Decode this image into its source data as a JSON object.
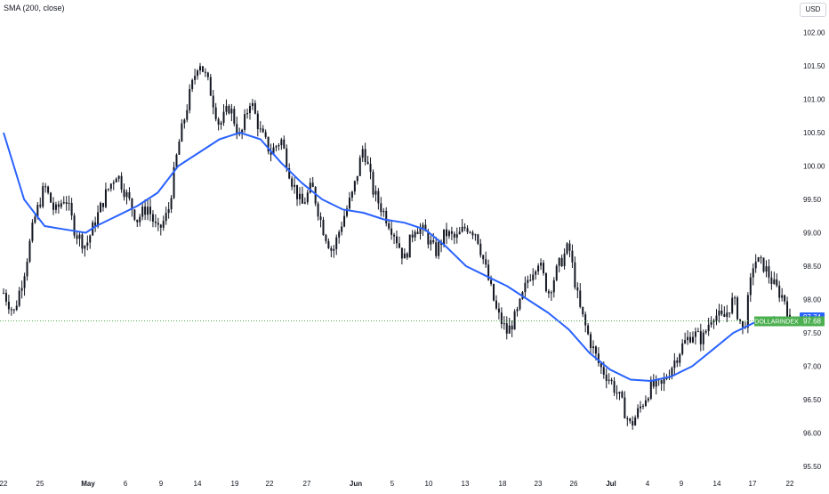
{
  "indicator_label": "SMA (200, close)",
  "currency": "USD",
  "price_tag": {
    "sma_value": "97.74",
    "instrument": "DOLLARINDEX",
    "last_value": "97.68"
  },
  "colors": {
    "candle": "#131722",
    "sma": "#2962ff",
    "price_line": "#4caf50",
    "badge_text": "#ffffff",
    "axis_text": "#131722",
    "background": "#ffffff"
  },
  "chart_data": {
    "type": "line",
    "instrument": "DOLLARINDEX",
    "title": "",
    "xlabel": "",
    "ylabel": "",
    "price_scale_side": "right",
    "grid": false,
    "ylim": [
      95.5,
      102.25
    ],
    "x_ticks": [
      {
        "label": "22",
        "bold": false
      },
      {
        "label": "25",
        "bold": false
      },
      {
        "label": "May",
        "bold": true
      },
      {
        "label": "6",
        "bold": false
      },
      {
        "label": "9",
        "bold": false
      },
      {
        "label": "14",
        "bold": false
      },
      {
        "label": "19",
        "bold": false
      },
      {
        "label": "22",
        "bold": false
      },
      {
        "label": "27",
        "bold": false
      },
      {
        "label": "Jun",
        "bold": true
      },
      {
        "label": "5",
        "bold": false
      },
      {
        "label": "10",
        "bold": false
      },
      {
        "label": "13",
        "bold": false
      },
      {
        "label": "18",
        "bold": false
      },
      {
        "label": "23",
        "bold": false
      },
      {
        "label": "26",
        "bold": false
      },
      {
        "label": "Jul",
        "bold": true
      },
      {
        "label": "4",
        "bold": false
      },
      {
        "label": "9",
        "bold": false
      },
      {
        "label": "14",
        "bold": false
      },
      {
        "label": "17",
        "bold": false
      },
      {
        "label": "22",
        "bold": false
      }
    ],
    "y_ticks": [
      "102.00",
      "101.50",
      "101.00",
      "100.50",
      "100.00",
      "99.50",
      "99.00",
      "98.50",
      "98.00",
      "97.50",
      "97.00",
      "96.50",
      "96.00",
      "95.50"
    ],
    "series": [
      {
        "style": "candlestick",
        "close_path": [
          [
            0,
            98.1
          ],
          [
            2,
            97.8
          ],
          [
            4,
            98.4
          ],
          [
            6,
            99.2
          ],
          [
            8,
            99.7
          ],
          [
            10,
            99.3
          ],
          [
            12,
            99.55
          ],
          [
            14,
            99.0
          ],
          [
            16,
            98.8
          ],
          [
            18,
            99.2
          ],
          [
            20,
            99.6
          ],
          [
            22,
            99.9
          ],
          [
            24,
            99.55
          ],
          [
            26,
            99.2
          ],
          [
            28,
            99.4
          ],
          [
            30,
            99.0
          ],
          [
            32,
            99.3
          ],
          [
            34,
            100.3
          ],
          [
            36,
            101.0
          ],
          [
            38,
            101.6
          ],
          [
            40,
            101.2
          ],
          [
            42,
            100.6
          ],
          [
            44,
            100.9
          ],
          [
            46,
            100.4
          ],
          [
            48,
            101.0
          ],
          [
            50,
            100.5
          ],
          [
            52,
            100.2
          ],
          [
            54,
            100.4
          ],
          [
            56,
            99.8
          ],
          [
            58,
            99.4
          ],
          [
            60,
            99.7
          ],
          [
            62,
            99.1
          ],
          [
            64,
            98.7
          ],
          [
            66,
            99.2
          ],
          [
            68,
            99.6
          ],
          [
            70,
            100.3
          ],
          [
            72,
            99.6
          ],
          [
            74,
            99.3
          ],
          [
            76,
            99.0
          ],
          [
            78,
            98.6
          ],
          [
            80,
            99.1
          ],
          [
            82,
            99.0
          ],
          [
            84,
            98.7
          ],
          [
            86,
            99.0
          ],
          [
            88,
            98.9
          ],
          [
            90,
            99.1
          ],
          [
            92,
            99.0
          ],
          [
            94,
            98.4
          ],
          [
            96,
            97.8
          ],
          [
            98,
            97.5
          ],
          [
            100,
            97.8
          ],
          [
            102,
            98.3
          ],
          [
            104,
            98.6
          ],
          [
            106,
            98.1
          ],
          [
            108,
            98.5
          ],
          [
            110,
            98.8
          ],
          [
            112,
            97.9
          ],
          [
            114,
            97.4
          ],
          [
            116,
            97.0
          ],
          [
            118,
            96.8
          ],
          [
            120,
            96.5
          ],
          [
            122,
            96.1
          ],
          [
            124,
            96.4
          ],
          [
            126,
            96.7
          ],
          [
            128,
            96.7
          ],
          [
            130,
            97.0
          ],
          [
            132,
            97.3
          ],
          [
            134,
            97.5
          ],
          [
            136,
            97.4
          ],
          [
            138,
            97.8
          ],
          [
            140,
            97.7
          ],
          [
            142,
            98.0
          ],
          [
            144,
            97.5
          ],
          [
            146,
            98.6
          ],
          [
            148,
            98.5
          ],
          [
            150,
            98.2
          ],
          [
            152,
            98.0
          ],
          [
            153,
            97.68
          ]
        ]
      },
      {
        "style": "line",
        "name": "SMA (200, close)",
        "points": [
          [
            0,
            100.5
          ],
          [
            4,
            99.5
          ],
          [
            8,
            99.1
          ],
          [
            12,
            99.05
          ],
          [
            16,
            99.0
          ],
          [
            18,
            99.1
          ],
          [
            22,
            99.25
          ],
          [
            26,
            99.4
          ],
          [
            30,
            99.6
          ],
          [
            34,
            100.0
          ],
          [
            38,
            100.2
          ],
          [
            42,
            100.4
          ],
          [
            46,
            100.5
          ],
          [
            50,
            100.4
          ],
          [
            54,
            100.05
          ],
          [
            58,
            99.75
          ],
          [
            62,
            99.5
          ],
          [
            66,
            99.35
          ],
          [
            70,
            99.3
          ],
          [
            74,
            99.2
          ],
          [
            78,
            99.15
          ],
          [
            82,
            99.05
          ],
          [
            86,
            98.8
          ],
          [
            90,
            98.5
          ],
          [
            94,
            98.35
          ],
          [
            98,
            98.2
          ],
          [
            102,
            98.0
          ],
          [
            106,
            97.8
          ],
          [
            110,
            97.55
          ],
          [
            114,
            97.2
          ],
          [
            118,
            96.95
          ],
          [
            122,
            96.8
          ],
          [
            126,
            96.78
          ],
          [
            130,
            96.85
          ],
          [
            134,
            97.0
          ],
          [
            138,
            97.25
          ],
          [
            142,
            97.5
          ],
          [
            146,
            97.65
          ],
          [
            150,
            97.74
          ]
        ]
      }
    ]
  }
}
